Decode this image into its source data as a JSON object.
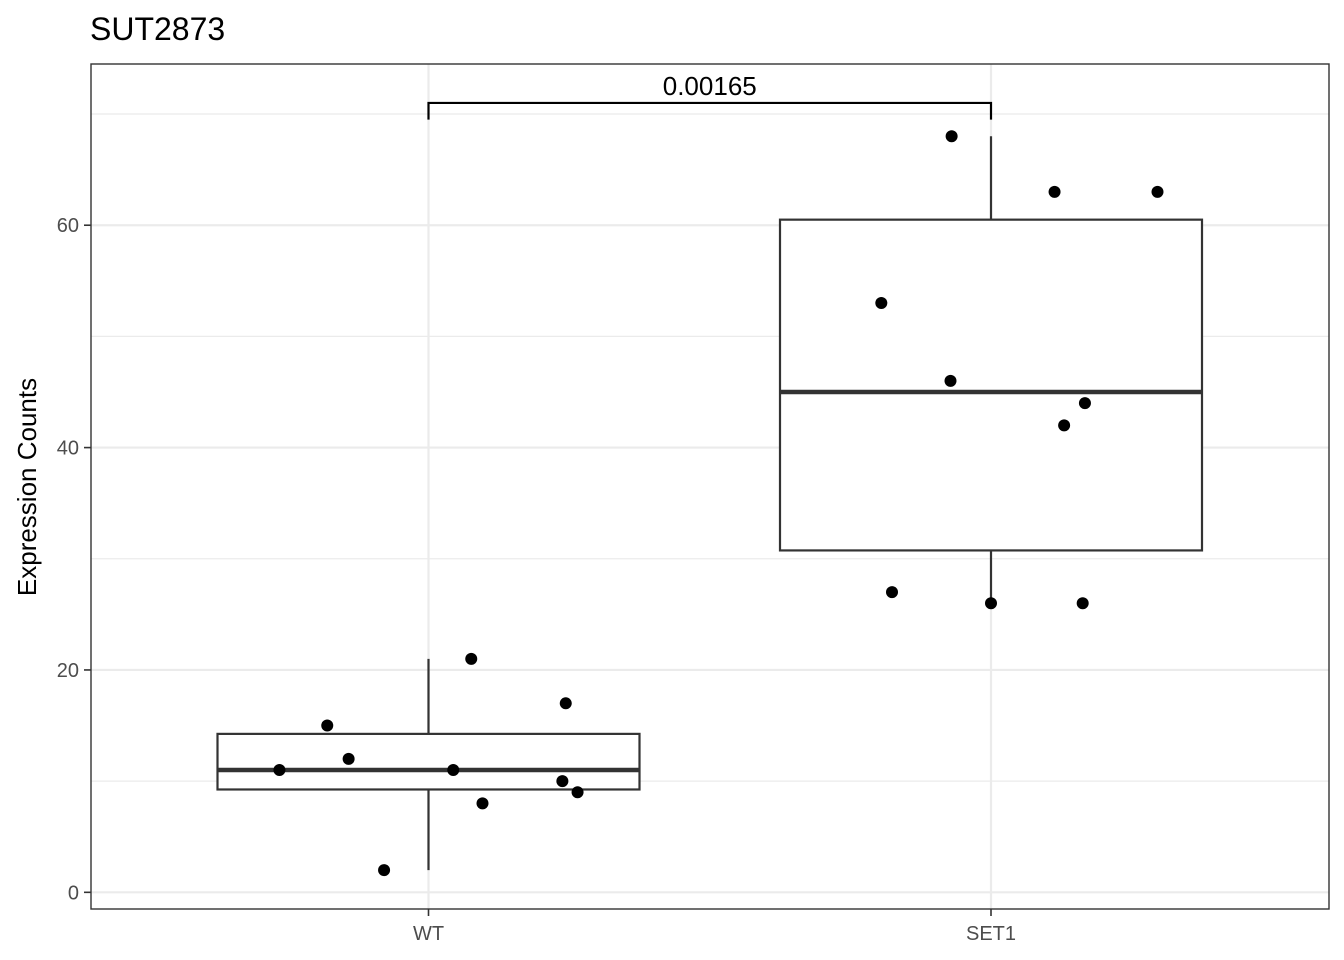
{
  "chart_data": {
    "type": "box",
    "title": "SUT2873",
    "xlabel": "",
    "ylabel": "Expression Counts",
    "ylim": [
      -1.5,
      74.5
    ],
    "yticks": [
      0,
      20,
      40,
      60
    ],
    "ytick_labels": [
      "0",
      "20",
      "40",
      "60"
    ],
    "categories": [
      "WT",
      "SET1"
    ],
    "grid": true,
    "boxes": [
      {
        "category": "WT",
        "min": 2,
        "q1": 9.25,
        "median": 11,
        "q3": 14.25,
        "max": 21
      },
      {
        "category": "SET1",
        "min": 26,
        "q1": 30.75,
        "median": 45,
        "q3": 60.5,
        "max": 68
      }
    ],
    "points": [
      {
        "category": "WT",
        "jitter": -0.265,
        "y": 11
      },
      {
        "category": "WT",
        "jitter": -0.18,
        "y": 15
      },
      {
        "category": "WT",
        "jitter": -0.142,
        "y": 12
      },
      {
        "category": "WT",
        "jitter": -0.079,
        "y": 2
      },
      {
        "category": "WT",
        "jitter": 0.044,
        "y": 11
      },
      {
        "category": "WT",
        "jitter": 0.076,
        "y": 21
      },
      {
        "category": "WT",
        "jitter": 0.096,
        "y": 8
      },
      {
        "category": "WT",
        "jitter": 0.238,
        "y": 10
      },
      {
        "category": "WT",
        "jitter": 0.244,
        "y": 17
      },
      {
        "category": "WT",
        "jitter": 0.265,
        "y": 9
      },
      {
        "category": "SET1",
        "jitter": -0.195,
        "y": 53
      },
      {
        "category": "SET1",
        "jitter": -0.176,
        "y": 27
      },
      {
        "category": "SET1",
        "jitter": -0.072,
        "y": 46
      },
      {
        "category": "SET1",
        "jitter": -0.07,
        "y": 68
      },
      {
        "category": "SET1",
        "jitter": 0.0,
        "y": 26
      },
      {
        "category": "SET1",
        "jitter": 0.113,
        "y": 63
      },
      {
        "category": "SET1",
        "jitter": 0.13,
        "y": 42
      },
      {
        "category": "SET1",
        "jitter": 0.163,
        "y": 26
      },
      {
        "category": "SET1",
        "jitter": 0.167,
        "y": 44
      },
      {
        "category": "SET1",
        "jitter": 0.296,
        "y": 63
      }
    ],
    "significance": {
      "from": "WT",
      "to": "SET1",
      "label": "0.00165",
      "y_top": 71,
      "y_tick": 69.5
    }
  }
}
